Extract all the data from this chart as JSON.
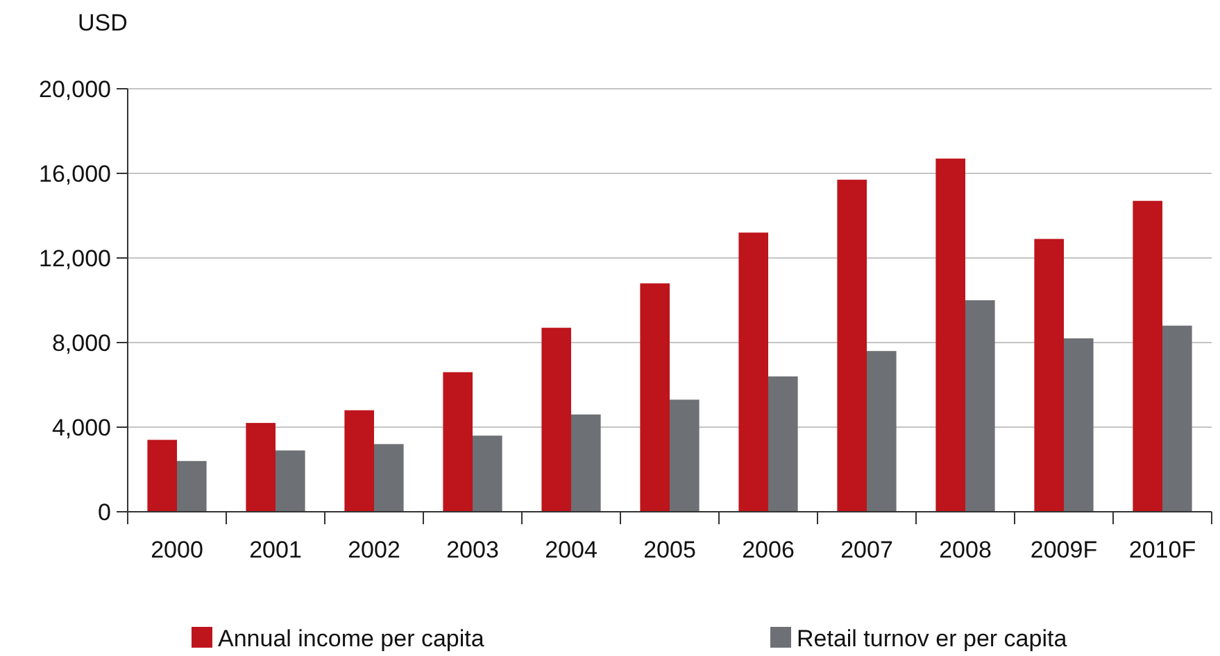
{
  "chart_data": {
    "type": "bar",
    "ylabel": "USD",
    "categories": [
      "2000",
      "2001",
      "2002",
      "2003",
      "2004",
      "2005",
      "2006",
      "2007",
      "2008",
      "2009F",
      "2010F"
    ],
    "series": [
      {
        "name": "Annual income per capita",
        "color": "#be141c",
        "values": [
          3400,
          4200,
          4800,
          6600,
          8700,
          10800,
          13200,
          15700,
          16700,
          12900,
          14700
        ]
      },
      {
        "name": "Retail turnov er per capita",
        "color": "#6d7074",
        "values": [
          2400,
          2900,
          3200,
          3600,
          4600,
          5300,
          6400,
          7600,
          10000,
          8200,
          8800
        ]
      }
    ],
    "ylim": [
      0,
      20000
    ],
    "yticks": [
      {
        "value": 0,
        "label": "0"
      },
      {
        "value": 4000,
        "label": "4,000"
      },
      {
        "value": 8000,
        "label": "8,000"
      },
      {
        "value": 12000,
        "label": "12,000"
      },
      {
        "value": 16000,
        "label": "16,000"
      },
      {
        "value": 20000,
        "label": "20,000"
      }
    ],
    "grid": "y",
    "legend": "bottom"
  }
}
